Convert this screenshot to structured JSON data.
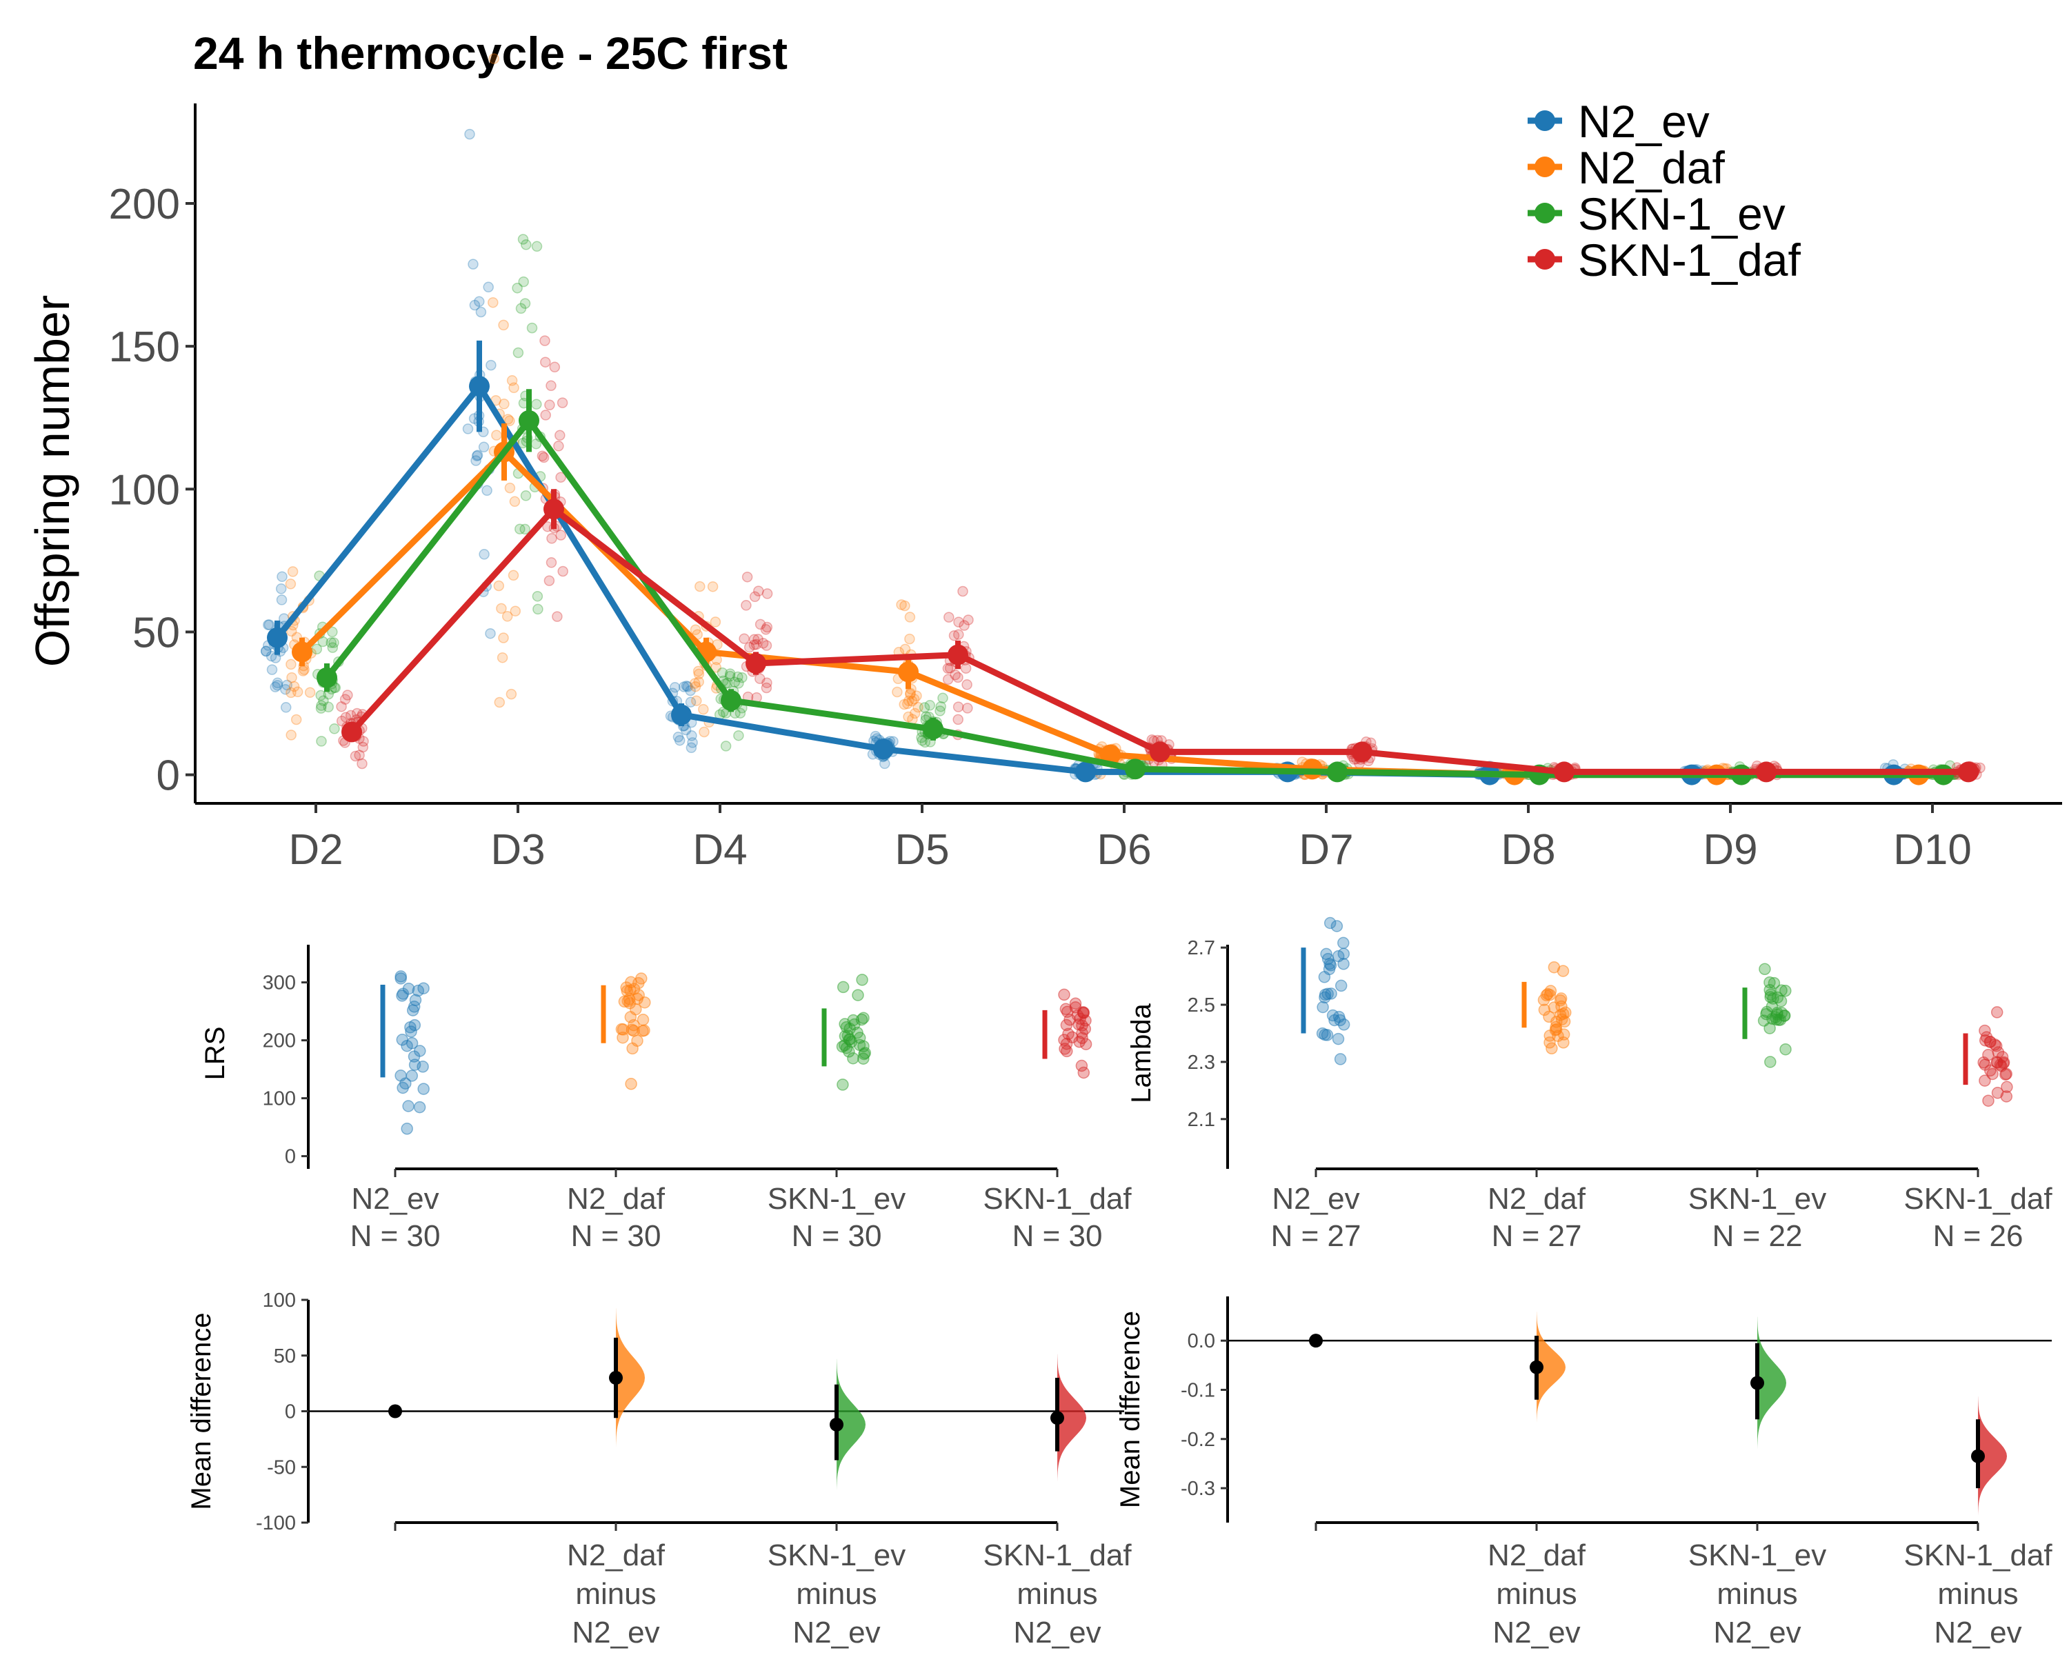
{
  "title": "24 h thermocycle - 25C first",
  "colors": {
    "N2_ev": "#1f77b4",
    "N2_daf": "#ff7f0e",
    "SKN-1_ev": "#2ca02c",
    "SKN-1_daf": "#d62728"
  },
  "legend": {
    "position": "top-right",
    "entries": [
      "N2_ev",
      "N2_daf",
      "SKN-1_ev",
      "SKN-1_daf"
    ]
  },
  "chart_data": [
    {
      "id": "offspring",
      "type": "line",
      "title": "24 h thermocycle - 25C first",
      "xlabel": "",
      "ylabel": "Offspring number",
      "ylim": [
        -10,
        235
      ],
      "yticks": [
        0,
        50,
        100,
        150,
        200
      ],
      "categories": [
        "D2",
        "D3",
        "D4",
        "D5",
        "D6",
        "D7",
        "D8",
        "D9",
        "D10"
      ],
      "grid": false,
      "series": [
        {
          "name": "N2_ev",
          "values": [
            48,
            136,
            21,
            9,
            1,
            1,
            0,
            0,
            0
          ],
          "err": [
            6,
            16,
            4,
            3,
            1,
            1,
            0,
            0,
            0
          ]
        },
        {
          "name": "N2_daf",
          "values": [
            43,
            113,
            43,
            36,
            7,
            2,
            0,
            0,
            0
          ],
          "err": [
            5,
            10,
            5,
            6,
            2,
            1,
            0,
            0,
            0
          ]
        },
        {
          "name": "SKN-1_ev",
          "values": [
            34,
            124,
            26,
            16,
            2,
            1,
            0,
            0,
            0
          ],
          "err": [
            5,
            11,
            4,
            4,
            1,
            1,
            0,
            0,
            0
          ]
        },
        {
          "name": "SKN-1_daf",
          "values": [
            15,
            93,
            39,
            42,
            8,
            8,
            1,
            1,
            1
          ],
          "err": [
            3,
            7,
            4,
            5,
            2,
            2,
            1,
            1,
            0
          ]
        }
      ]
    },
    {
      "id": "lrs",
      "type": "scatter",
      "ylabel": "LRS",
      "ylim": [
        -10,
        365
      ],
      "yticks": [
        0,
        100,
        200,
        300
      ],
      "groups": [
        {
          "name": "N2_ev",
          "n_label": "N = 30",
          "mean": 216,
          "sd": 80
        },
        {
          "name": "N2_daf",
          "n_label": "N = 30",
          "mean": 245,
          "sd": 50
        },
        {
          "name": "SKN-1_ev",
          "n_label": "N = 30",
          "mean": 205,
          "sd": 50
        },
        {
          "name": "SKN-1_daf",
          "n_label": "N = 30",
          "mean": 210,
          "sd": 42
        }
      ]
    },
    {
      "id": "lambda",
      "type": "scatter",
      "ylabel": "Lambda",
      "ylim": [
        1.95,
        2.71
      ],
      "yticks": [
        2.1,
        2.3,
        2.5,
        2.7
      ],
      "groups": [
        {
          "name": "N2_ev",
          "n_label": "N = 27",
          "mean": 2.55,
          "sd": 0.15
        },
        {
          "name": "N2_daf",
          "n_label": "N = 27",
          "mean": 2.5,
          "sd": 0.08
        },
        {
          "name": "SKN-1_ev",
          "n_label": "N = 22",
          "mean": 2.47,
          "sd": 0.09
        },
        {
          "name": "SKN-1_daf",
          "n_label": "N = 26",
          "mean": 2.31,
          "sd": 0.09
        }
      ]
    },
    {
      "id": "lrs_diff",
      "type": "scatter",
      "ylabel": "Mean difference",
      "ylim": [
        -100,
        100
      ],
      "yticks": [
        -100,
        -50,
        0,
        50,
        100
      ],
      "xlabels": [
        {
          "lines": [
            "",
            "",
            ""
          ]
        },
        {
          "lines": [
            "N2_daf",
            "minus",
            "N2_ev"
          ]
        },
        {
          "lines": [
            "SKN-1_ev",
            "minus",
            "N2_ev"
          ]
        },
        {
          "lines": [
            "SKN-1_daf",
            "minus",
            "N2_ev"
          ]
        }
      ],
      "points": [
        {
          "name": "N2_ev",
          "diff": 0,
          "ci": [
            0,
            0
          ]
        },
        {
          "name": "N2_daf",
          "diff": 30,
          "ci": [
            -6,
            66
          ]
        },
        {
          "name": "SKN-1_ev",
          "diff": -12,
          "ci": [
            -44,
            24
          ]
        },
        {
          "name": "SKN-1_daf",
          "diff": -6,
          "ci": [
            -36,
            30
          ]
        }
      ]
    },
    {
      "id": "lambda_diff",
      "type": "scatter",
      "ylabel": "Mean difference",
      "ylim": [
        -0.37,
        0.09
      ],
      "yticks": [
        -0.3,
        -0.2,
        -0.1,
        0.0
      ],
      "xlabels": [
        {
          "lines": [
            "",
            "",
            ""
          ]
        },
        {
          "lines": [
            "N2_daf",
            "minus",
            "N2_ev"
          ]
        },
        {
          "lines": [
            "SKN-1_ev",
            "minus",
            "N2_ev"
          ]
        },
        {
          "lines": [
            "SKN-1_daf",
            "minus",
            "N2_ev"
          ]
        }
      ],
      "points": [
        {
          "name": "N2_ev",
          "diff": 0,
          "ci": [
            0,
            0
          ]
        },
        {
          "name": "N2_daf",
          "diff": -0.054,
          "ci": [
            -0.12,
            0.01
          ]
        },
        {
          "name": "SKN-1_ev",
          "diff": -0.086,
          "ci": [
            -0.16,
            -0.005
          ]
        },
        {
          "name": "SKN-1_daf",
          "diff": -0.235,
          "ci": [
            -0.3,
            -0.16
          ]
        }
      ]
    }
  ]
}
